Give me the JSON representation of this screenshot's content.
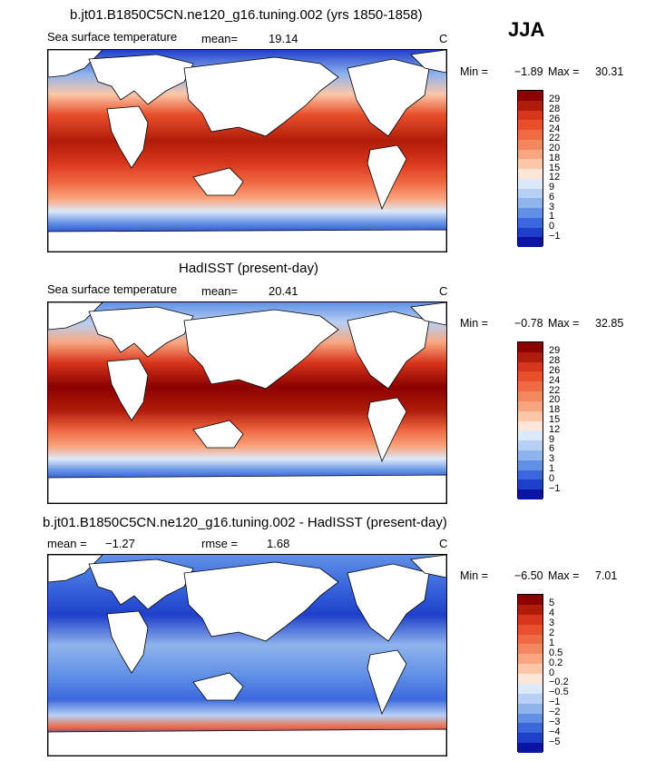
{
  "season": "JJA",
  "chart_data": [
    {
      "type": "heatmap",
      "title": "b.jt01.B1850C5CN.ne120_g16.tuning.002 (yrs 1850-1858)",
      "variable": "Sea surface temperature",
      "mean_label": "mean=",
      "mean": "19.14",
      "units": "C",
      "min_label": "Min =",
      "min": "−1.89",
      "max_label": "Max =",
      "max": "30.31",
      "colorbar": {
        "labels": [
          "29",
          "28",
          "26",
          "24",
          "22",
          "20",
          "18",
          "15",
          "12",
          "9",
          "6",
          "3",
          "1",
          "0",
          "−1"
        ],
        "colors": [
          "#8b0000",
          "#b01c0a",
          "#d8361c",
          "#e8502c",
          "#f06a44",
          "#f5875f",
          "#f9a680",
          "#fbc7a8",
          "#fde6d8",
          "#dce9f8",
          "#b8d0f3",
          "#8fb3ec",
          "#6190e6",
          "#3a68dc",
          "#1e3fca",
          "#0b13a2"
        ]
      }
    },
    {
      "type": "heatmap",
      "title": "HadISST (present-day)",
      "variable": "Sea surface temperature",
      "mean_label": "mean=",
      "mean": "20.41",
      "units": "C",
      "min_label": "Min =",
      "min": "−0.78",
      "max_label": "Max =",
      "max": "32.85",
      "colorbar": {
        "labels": [
          "29",
          "28",
          "26",
          "24",
          "22",
          "20",
          "18",
          "15",
          "12",
          "9",
          "6",
          "3",
          "1",
          "0",
          "−1"
        ],
        "colors": [
          "#8b0000",
          "#b01c0a",
          "#d8361c",
          "#e8502c",
          "#f06a44",
          "#f5875f",
          "#f9a680",
          "#fbc7a8",
          "#fde6d8",
          "#dce9f8",
          "#b8d0f3",
          "#8fb3ec",
          "#6190e6",
          "#3a68dc",
          "#1e3fca",
          "#0b13a2"
        ]
      }
    },
    {
      "type": "heatmap",
      "title": "b.jt01.B1850C5CN.ne120_g16.tuning.002 - HadISST (present-day)",
      "mean_label": "mean =",
      "mean": "−1.27",
      "rmse_label": "rmse =",
      "rmse": "1.68",
      "units": "C",
      "min_label": "Min =",
      "min": "−6.50",
      "max_label": "Max =",
      "max": "7.01",
      "colorbar": {
        "labels": [
          "5",
          "4",
          "3",
          "2",
          "1",
          "0.5",
          "0.2",
          "0",
          "−0.2",
          "−0.5",
          "−1",
          "−2",
          "−3",
          "−4",
          "−5"
        ],
        "colors": [
          "#8b0000",
          "#b01c0a",
          "#d8361c",
          "#e8502c",
          "#f06a44",
          "#f5875f",
          "#f9a680",
          "#fbc7a8",
          "#fde6d8",
          "#dce9f8",
          "#b8d0f3",
          "#8fb3ec",
          "#6190e6",
          "#3a68dc",
          "#1e3fca",
          "#0b13a2"
        ]
      }
    }
  ]
}
